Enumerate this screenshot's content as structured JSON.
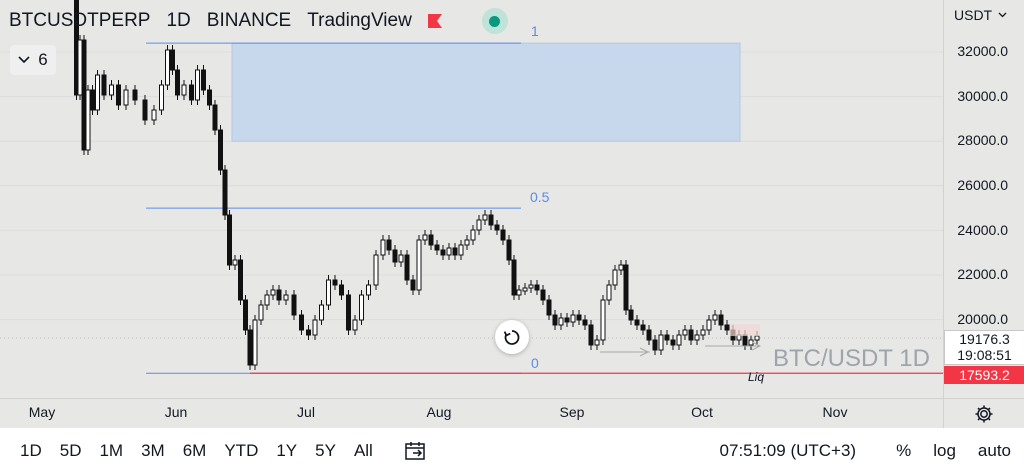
{
  "legend": {
    "symbol": "BTCUSDTPERP",
    "interval": "1D",
    "exchange": "BINANCE",
    "source": "TradingView"
  },
  "indicator_count": "6",
  "fib_levels": [
    {
      "label": "1",
      "price": 32400
    },
    {
      "label": "0.5",
      "price": 25000
    },
    {
      "label": "0",
      "price": 17593
    }
  ],
  "watermark": "BTC/USDT 1D",
  "liq_label": "Liq",
  "price_axis": {
    "currency": "USDT",
    "ticks": [
      "32000.0",
      "30000.0",
      "28000.0",
      "26000.0",
      "24000.0",
      "22000.0",
      "20000.0"
    ],
    "last_price": "19176.3",
    "countdown": "19:08:51",
    "liq_price": "17593.2"
  },
  "time_axis": {
    "months": [
      "May",
      "Jun",
      "Jul",
      "Aug",
      "Sep",
      "Oct",
      "Nov"
    ]
  },
  "bottom_bar": {
    "ranges": [
      "1D",
      "5D",
      "1M",
      "3M",
      "6M",
      "YTD",
      "1Y",
      "5Y",
      "All"
    ],
    "clock": "07:51:09 (UTC+3)",
    "percent": "%",
    "log": "log",
    "auto": "auto"
  },
  "colors": {
    "fib_line": "#5b8ce8",
    "zone_fill": "#c7d7ec",
    "liq_line": "#f23645",
    "candle": "#111111",
    "up_dot": "#089981"
  }
}
